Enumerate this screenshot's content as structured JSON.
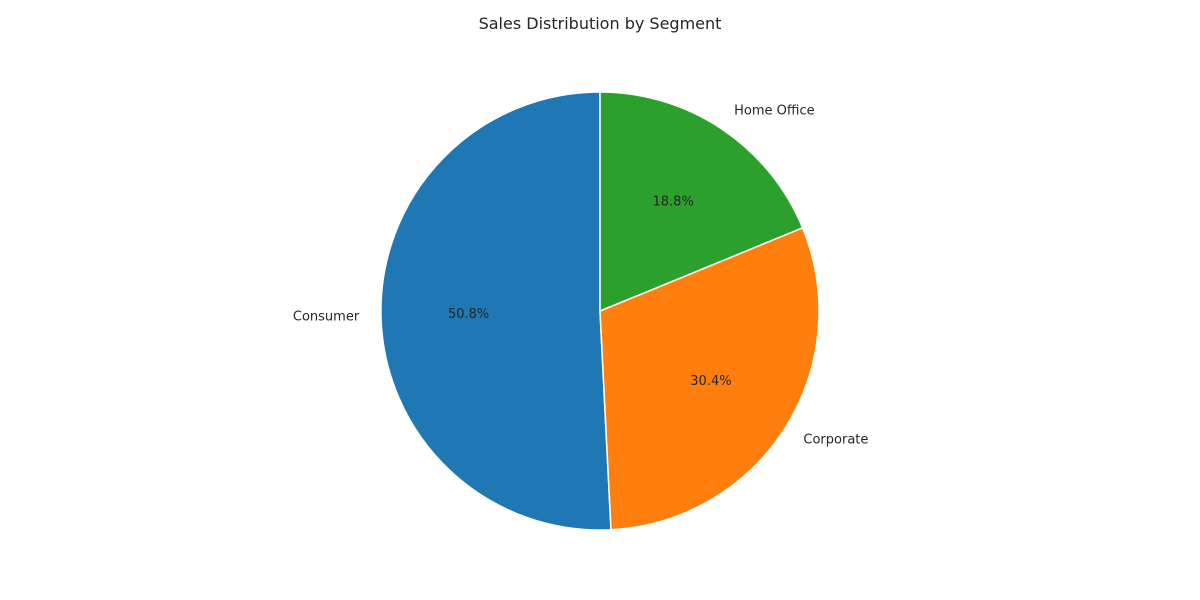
{
  "chart_data": {
    "type": "pie",
    "title": "Sales Distribution by Segment",
    "categories": [
      "Consumer",
      "Corporate",
      "Home Office"
    ],
    "values": [
      50.8,
      30.4,
      18.8
    ],
    "percent_labels": [
      "50.8%",
      "30.4%",
      "18.8%"
    ],
    "colors": [
      "#1f77b4",
      "#ff7f0e",
      "#2ca02c"
    ],
    "start_angle": "top",
    "direction": "counterclockwise",
    "legend": "none"
  }
}
